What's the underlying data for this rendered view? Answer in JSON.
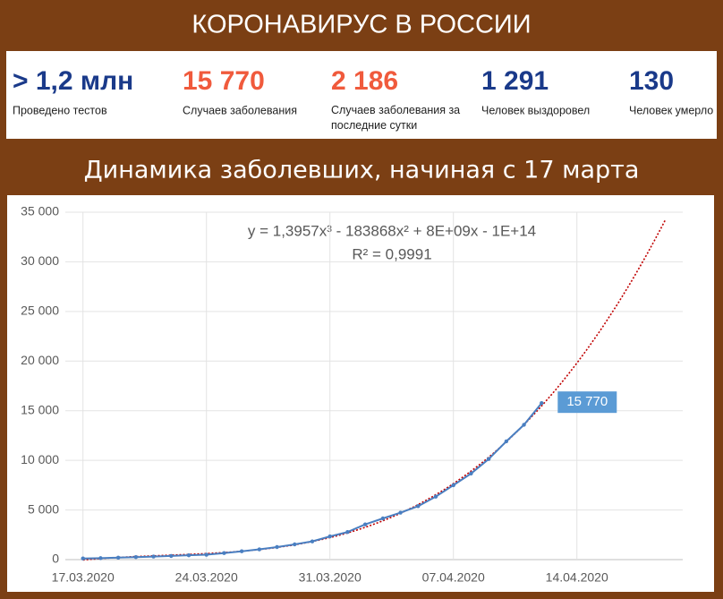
{
  "header": {
    "title": "КОРОНАВИРУС В РОССИИ"
  },
  "stats": [
    {
      "value": "> 1,2 млн",
      "label": "Проведено тестов",
      "color": "#1a3a8a"
    },
    {
      "value": "15 770",
      "label": "Случаев заболевания",
      "color": "#f05a3c"
    },
    {
      "value": "2 186",
      "label": "Случаев заболевания за последние сутки",
      "color": "#f05a3c"
    },
    {
      "value": "1 291",
      "label": "Человек выздоровел",
      "color": "#1a3a8a"
    },
    {
      "value": "130",
      "label": "Человек умерло",
      "color": "#1a3a8a"
    }
  ],
  "chart_data": {
    "type": "line",
    "title": "Динамика заболевших, начиная с 17 марта",
    "x": [
      "17.03.2020",
      "18.03.2020",
      "19.03.2020",
      "20.03.2020",
      "21.03.2020",
      "22.03.2020",
      "23.03.2020",
      "24.03.2020",
      "25.03.2020",
      "26.03.2020",
      "27.03.2020",
      "28.03.2020",
      "29.03.2020",
      "30.03.2020",
      "31.03.2020",
      "01.04.2020",
      "02.04.2020",
      "03.04.2020",
      "04.04.2020",
      "05.04.2020",
      "06.04.2020",
      "07.04.2020",
      "08.04.2020",
      "09.04.2020",
      "10.04.2020",
      "11.04.2020",
      "12.04.2020"
    ],
    "series": [
      {
        "name": "Случаев заболевания",
        "color": "#4a7fc1",
        "values": [
          114,
          147,
          199,
          253,
          306,
          367,
          438,
          495,
          658,
          840,
          1036,
          1264,
          1534,
          1836,
          2337,
          2777,
          3548,
          4149,
          4731,
          5389,
          6343,
          7497,
          8672,
          10131,
          11917,
          13584,
          15770
        ],
        "value_labels": [
          null,
          null,
          null,
          null,
          null,
          null,
          null,
          null,
          null,
          null,
          null,
          null,
          null,
          null,
          null,
          null,
          null,
          null,
          null,
          null,
          null,
          null,
          null,
          null,
          null,
          null,
          "15 770"
        ]
      }
    ],
    "trendline": {
      "type": "polynomial",
      "order": 3,
      "color": "#c00000",
      "end": "19.04.2020",
      "equation": "y = 1,3957x³ - 183868x² + 8E+09x - 1E+14",
      "r2": "R² = 0,9991"
    },
    "xlim": [
      "16.03.2020",
      "20.04.2020"
    ],
    "xticks": [
      "17.03.2020",
      "24.03.2020",
      "31.03.2020",
      "07.04.2020",
      "14.04.2020"
    ],
    "ylim": [
      0,
      35000
    ],
    "yticks": [
      0,
      {
        "value": 5000,
        "label": "5 000"
      },
      {
        "value": 10000,
        "label": "10 000"
      },
      {
        "value": 15000,
        "label": "15 000"
      },
      {
        "value": 20000,
        "label": "20 000"
      },
      {
        "value": 25000,
        "label": "25 000"
      },
      {
        "value": 30000,
        "label": "30 000"
      },
      {
        "value": 35000,
        "label": "35 000"
      }
    ],
    "grid": true
  }
}
